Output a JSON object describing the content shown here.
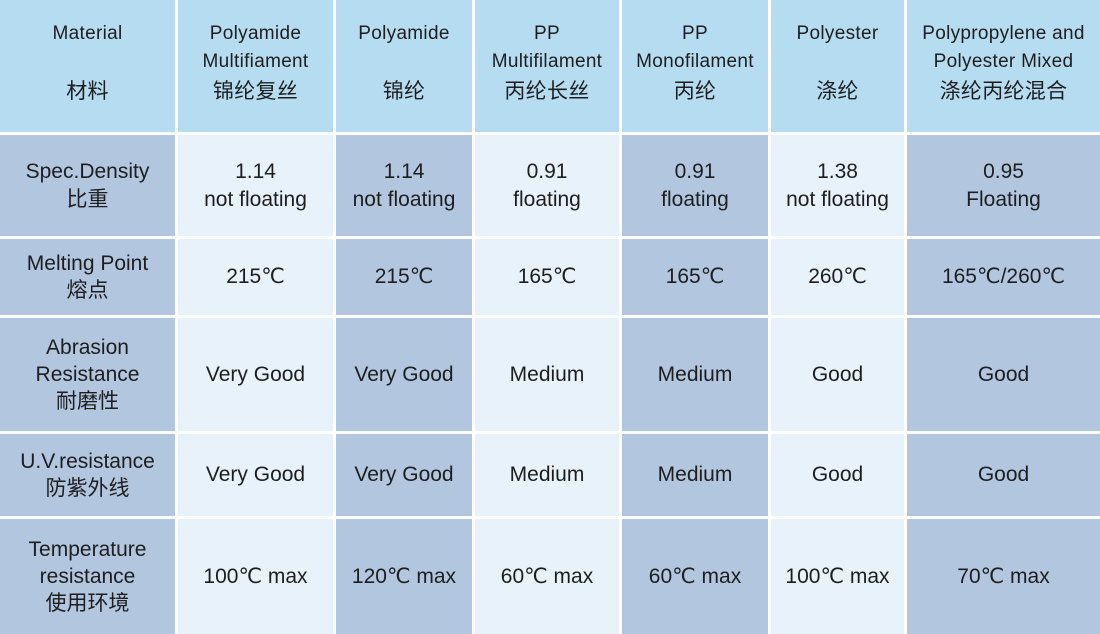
{
  "header": [
    {
      "en": [
        "Material"
      ],
      "zh": "材料"
    },
    {
      "en": [
        "Polyamide",
        "Multifiament"
      ],
      "zh": "锦纶复丝"
    },
    {
      "en": [
        "Polyamide"
      ],
      "zh": "锦纶"
    },
    {
      "en": [
        "PP",
        "Multifilament"
      ],
      "zh": "丙纶长丝"
    },
    {
      "en": [
        "PP",
        "Monofilament"
      ],
      "zh": "丙纶"
    },
    {
      "en": [
        "Polyester"
      ],
      "zh": "涤纶"
    },
    {
      "en": [
        "Polypropylene and",
        "Polyester Mixed"
      ],
      "zh": "涤纶丙纶混合"
    }
  ],
  "rows": [
    {
      "label": [
        "Spec.Density",
        "比重"
      ],
      "values": [
        [
          "1.14",
          "not floating"
        ],
        [
          "1.14",
          "not floating"
        ],
        [
          "0.91",
          "floating"
        ],
        [
          "0.91",
          "floating"
        ],
        [
          "1.38",
          "not floating"
        ],
        [
          "0.95",
          "Floating"
        ]
      ]
    },
    {
      "label": [
        "Melting Point",
        "熔点"
      ],
      "values": [
        [
          "215℃"
        ],
        [
          "215℃"
        ],
        [
          "165℃"
        ],
        [
          "165℃"
        ],
        [
          "260℃"
        ],
        [
          "165℃/260℃"
        ]
      ]
    },
    {
      "label": [
        "Abrasion",
        "Resistance",
        "耐磨性"
      ],
      "values": [
        [
          "Very Good"
        ],
        [
          "Very Good"
        ],
        [
          "Medium"
        ],
        [
          "Medium"
        ],
        [
          "Good"
        ],
        [
          "Good"
        ]
      ]
    },
    {
      "label": [
        "U.V.resistance",
        "防紫外线"
      ],
      "values": [
        [
          "Very Good"
        ],
        [
          "Very Good"
        ],
        [
          "Medium"
        ],
        [
          "Medium"
        ],
        [
          "Good"
        ],
        [
          "Good"
        ]
      ]
    },
    {
      "label": [
        "Temperature",
        "resistance",
        "使用环境"
      ],
      "values": [
        [
          "100℃ max"
        ],
        [
          "120℃ max"
        ],
        [
          "60℃ max"
        ],
        [
          "60℃ max"
        ],
        [
          "100℃ max"
        ],
        [
          "70℃ max"
        ]
      ]
    }
  ],
  "colors": {
    "header": "#b6dcf1",
    "dark": "#b2c6df",
    "light": "#e7f2fb"
  }
}
